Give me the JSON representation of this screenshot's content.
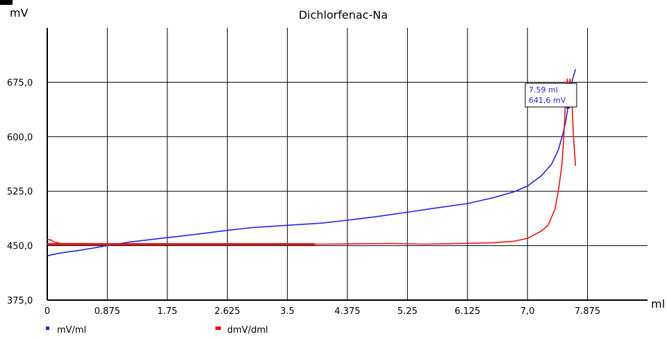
{
  "chart_data": {
    "type": "line",
    "title": "Dichlorfenac-Na",
    "ylabel": "mV",
    "xlabel": "ml",
    "xlim": [
      0,
      8.75
    ],
    "ylim": [
      375,
      750
    ],
    "x_ticks": [
      0,
      0.875,
      1.75,
      2.625,
      3.5,
      4.375,
      5.25,
      6.125,
      7.0,
      7.875
    ],
    "x_tick_labels": [
      "0",
      "0.875",
      "1.75",
      "2.625",
      "3.5",
      "4.375",
      "5.25",
      "6.125",
      "7,0",
      "7.875"
    ],
    "y_ticks": [
      375,
      450,
      525,
      600,
      675
    ],
    "y_tick_labels": [
      "375,0",
      "450,0",
      "525,0",
      "600,0",
      "675,0"
    ],
    "grid": true,
    "legend_position": "bottom-left",
    "series": [
      {
        "name": "mV/ml",
        "color": "#2222ee",
        "x": [
          0,
          0.2,
          0.5,
          0.875,
          1.2,
          1.75,
          2.2,
          2.625,
          3.0,
          3.5,
          4.0,
          4.375,
          4.8,
          5.25,
          5.6,
          6.125,
          6.5,
          6.8,
          7.0,
          7.2,
          7.35,
          7.45,
          7.52,
          7.56,
          7.59,
          7.62,
          7.66,
          7.7
        ],
        "values": [
          436,
          440,
          444,
          450,
          455,
          461,
          466,
          471,
          475,
          478,
          481,
          485,
          490,
          496,
          501,
          508,
          516,
          524,
          532,
          546,
          562,
          582,
          605,
          622,
          641.6,
          662,
          680,
          693
        ]
      },
      {
        "name": "dmV/dml",
        "color": "#ee1111",
        "x": [
          0,
          0.05,
          0.1,
          0.2,
          0.5,
          1.0,
          2.0,
          3.0,
          4.0,
          5.0,
          5.5,
          6.0,
          6.5,
          6.8,
          7.0,
          7.1,
          7.2,
          7.3,
          7.4,
          7.45,
          7.5,
          7.53,
          7.56,
          7.58,
          7.6,
          7.62,
          7.64,
          7.67,
          7.7
        ],
        "values": [
          458,
          458,
          455,
          453,
          453,
          452,
          452,
          452,
          452,
          453,
          452,
          453,
          454,
          456,
          460,
          465,
          470,
          478,
          500,
          525,
          560,
          600,
          660,
          680,
          648,
          680,
          665,
          600,
          560
        ]
      }
    ],
    "annotation": {
      "series": "mV/ml",
      "x": 7.59,
      "y": 641.6,
      "line1": "7.59 ml",
      "line2": "641,6 mV",
      "color": "#2222ee"
    }
  }
}
